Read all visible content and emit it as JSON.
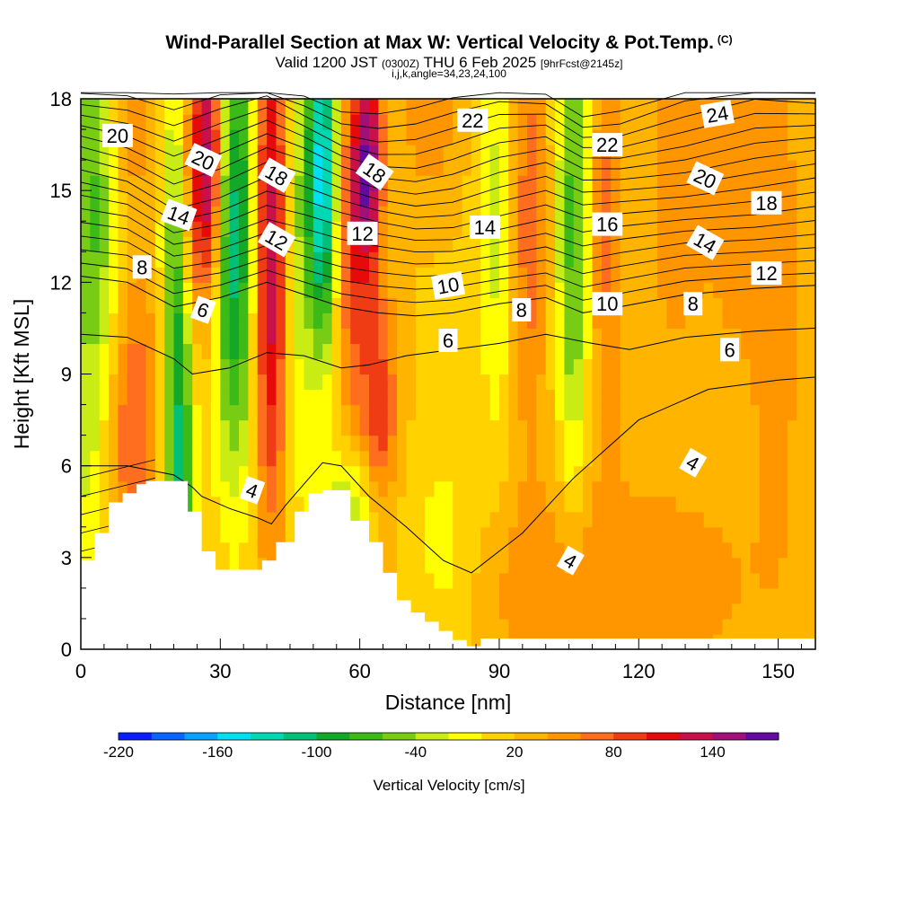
{
  "header": {
    "title": "Wind-Parallel Section at Max W: Vertical Velocity & Pot.Temp.",
    "title_suffix": "(C)",
    "valid_prefix": "Valid 1200 JST",
    "valid_zulu": "(0300Z)",
    "valid_date": "THU 6 Feb 2025",
    "forecast_tag": "[9hrFcst@2145z]",
    "indices": "i,j,k,angle=34,23,24,100"
  },
  "chart_data": {
    "type": "heatmap",
    "xlabel": "Distance [nm]",
    "ylabel": "Height [Kft MSL]",
    "xlim": [
      0,
      158
    ],
    "ylim": [
      0,
      18
    ],
    "x_ticks": [
      0,
      30,
      60,
      90,
      120,
      150
    ],
    "y_ticks": [
      0,
      3,
      6,
      9,
      12,
      15,
      18
    ],
    "colorbar": {
      "title": "Vertical Velocity [cm/s]",
      "tick_labels": [
        "-220",
        "-160",
        "-100",
        "-40",
        "20",
        "80",
        "140"
      ],
      "tick_values": [
        -220,
        -160,
        -100,
        -40,
        20,
        80,
        140
      ],
      "min": -220,
      "max": 170,
      "step": 20,
      "colors": [
        "#0a1eff",
        "#0a64ff",
        "#0aa0ff",
        "#00e0f0",
        "#00d8b4",
        "#00c078",
        "#14a828",
        "#3cba18",
        "#78cc14",
        "#c8ec14",
        "#ffff00",
        "#ffd200",
        "#ffb400",
        "#ff9600",
        "#ff6e1e",
        "#f03c14",
        "#e60a0a",
        "#c8104a",
        "#a01078",
        "#640aa0"
      ]
    },
    "terrain_profile": {
      "x": [
        0,
        3,
        3,
        6,
        6,
        9,
        9,
        12,
        12,
        14,
        14,
        23,
        23,
        26,
        26,
        29,
        29,
        39,
        39,
        42,
        42,
        46,
        46,
        49,
        49,
        52,
        52,
        58,
        58,
        62,
        62,
        65,
        65,
        68,
        68,
        71,
        71,
        74,
        74,
        77,
        77,
        80,
        80,
        83,
        83,
        86,
        86,
        158
      ],
      "y": [
        2.9,
        2.9,
        3.8,
        3.8,
        4.8,
        4.8,
        5.1,
        5.1,
        5.4,
        5.4,
        5.5,
        5.5,
        4.5,
        4.5,
        3.2,
        3.2,
        2.6,
        2.6,
        2.9,
        2.9,
        3.5,
        3.5,
        4.5,
        4.5,
        5.1,
        5.1,
        5.2,
        5.2,
        4.2,
        4.2,
        3.5,
        3.5,
        2.5,
        2.5,
        1.6,
        1.6,
        1.2,
        1.2,
        0.9,
        0.9,
        0.6,
        0.6,
        0.3,
        0.3,
        0.1,
        0.1,
        0.35,
        0.35
      ]
    },
    "w_features": [
      {
        "x": 3,
        "z": 13,
        "sx": 4,
        "sz": 10,
        "w": -90
      },
      {
        "x": 10,
        "z": 7,
        "sx": 6,
        "sz": 4,
        "w": 70
      },
      {
        "x": 21,
        "z": 8,
        "sx": 2.5,
        "sz": 8,
        "w": -140
      },
      {
        "x": 24,
        "z": 15,
        "sx": 2.5,
        "sz": 4,
        "w": 90
      },
      {
        "x": 28,
        "z": 16,
        "sx": 2,
        "sz": 3,
        "w": 120
      },
      {
        "x": 31,
        "z": 13,
        "sx": 2.5,
        "sz": 5,
        "w": -80
      },
      {
        "x": 35,
        "z": 14,
        "sx": 2.5,
        "sz": 6,
        "w": -100
      },
      {
        "x": 41,
        "z": 13,
        "sx": 3,
        "sz": 6,
        "w": 130
      },
      {
        "x": 46,
        "z": 13,
        "sx": 2.5,
        "sz": 6,
        "w": -60
      },
      {
        "x": 52,
        "z": 15.5,
        "sx": 2.5,
        "sz": 4,
        "w": -170
      },
      {
        "x": 58,
        "z": 14,
        "sx": 2.5,
        "sz": 4,
        "w": 80
      },
      {
        "x": 62,
        "z": 16,
        "sx": 2,
        "sz": 2.5,
        "w": 130
      },
      {
        "x": 64,
        "z": 7.5,
        "sx": 3,
        "sz": 3,
        "w": 80
      },
      {
        "x": 59,
        "z": 4.5,
        "sx": 5,
        "sz": 1.5,
        "w": -70
      },
      {
        "x": 78,
        "z": 3,
        "sx": 6,
        "sz": 2.5,
        "w": -40
      },
      {
        "x": 90,
        "z": 14,
        "sx": 3,
        "sz": 5,
        "w": -50
      },
      {
        "x": 96,
        "z": 14,
        "sx": 3,
        "sz": 5,
        "w": 60
      },
      {
        "x": 106,
        "z": 14,
        "sx": 2.5,
        "sz": 6,
        "w": -90
      },
      {
        "x": 113,
        "z": 14,
        "sx": 3,
        "sz": 5,
        "w": 50
      },
      {
        "x": 128,
        "z": 15,
        "sx": 4,
        "sz": 4,
        "w": 40
      },
      {
        "x": 140,
        "z": 15,
        "sx": 5,
        "sz": 5,
        "w": 30
      },
      {
        "x": 150,
        "z": 12,
        "sx": 4,
        "sz": 6,
        "w": 35
      },
      {
        "x": 10,
        "z": 17.5,
        "sx": 4,
        "sz": 2,
        "w": 45
      },
      {
        "x": 75,
        "z": 17.5,
        "sx": 5,
        "sz": 2,
        "w": 35
      },
      {
        "x": 100,
        "z": 2,
        "sx": 25,
        "sz": 2.5,
        "w": 25
      },
      {
        "x": 125,
        "z": 2,
        "sx": 20,
        "sz": 3,
        "w": 20
      }
    ],
    "theta_contour_heights": [
      {
        "level": 4,
        "x": [
          0,
          10,
          20,
          24,
          26,
          32,
          38,
          41,
          44,
          48,
          52,
          56,
          62,
          70,
          78,
          84,
          95,
          106,
          120,
          135,
          150,
          158
        ],
        "y": [
          6,
          6,
          5.7,
          5.3,
          5.0,
          4.6,
          4.3,
          4.1,
          4.7,
          5.4,
          6.1,
          6.0,
          5.0,
          4.0,
          2.9,
          2.5,
          3.8,
          5.6,
          7.5,
          8.5,
          8.8,
          8.9
        ]
      },
      {
        "level": 6,
        "x": [
          0,
          10,
          20,
          24,
          32,
          40,
          48,
          56,
          62,
          70,
          80,
          90,
          100,
          110,
          118,
          130,
          145,
          158
        ],
        "y": [
          10.3,
          10.2,
          9.5,
          9.0,
          9.2,
          9.7,
          9.6,
          9.2,
          9.3,
          9.6,
          9.8,
          10.0,
          10.3,
          10.0,
          9.8,
          10.2,
          10.4,
          10.5
        ]
      },
      {
        "level": 8,
        "x": [
          0,
          10,
          20,
          30,
          40,
          48,
          56,
          64,
          72,
          80,
          90,
          100,
          108,
          116,
          130,
          145,
          158
        ],
        "y": [
          12.2,
          12.0,
          11.2,
          11.5,
          12.0,
          11.6,
          11.2,
          11.0,
          10.9,
          11.0,
          11.3,
          11.5,
          11.0,
          11.2,
          11.6,
          11.8,
          11.9
        ]
      }
    ],
    "theta_contour_labels": [
      {
        "text": "20",
        "x": 3,
        "z": 16.8,
        "angle": 0
      },
      {
        "text": "20",
        "x": 10,
        "z": 16.0,
        "angle": 25
      },
      {
        "text": "14",
        "x": 8,
        "z": 14.2,
        "angle": 20
      },
      {
        "text": "8",
        "x": 5,
        "z": 12.5,
        "angle": 0
      },
      {
        "text": "6",
        "x": 10,
        "z": 11.1,
        "angle": 20
      },
      {
        "text": "18",
        "x": 16,
        "z": 15.5,
        "angle": 30
      },
      {
        "text": "12",
        "x": 16,
        "z": 13.4,
        "angle": 30
      },
      {
        "text": "4",
        "x": 14,
        "z": 5.2,
        "angle": 20
      },
      {
        "text": "18",
        "x": 24,
        "z": 15.6,
        "angle": 35
      },
      {
        "text": "12",
        "x": 23,
        "z": 13.6,
        "angle": 0
      },
      {
        "text": "22",
        "x": 32,
        "z": 17.3,
        "angle": 0
      },
      {
        "text": "14",
        "x": 33,
        "z": 13.8,
        "angle": 0
      },
      {
        "text": "10",
        "x": 30,
        "z": 11.9,
        "angle": -10
      },
      {
        "text": "6",
        "x": 30,
        "z": 10.1,
        "angle": 0
      },
      {
        "text": "8",
        "x": 36,
        "z": 11.1,
        "angle": 0
      },
      {
        "text": "22",
        "x": 43,
        "z": 16.5,
        "angle": 0
      },
      {
        "text": "16",
        "x": 43,
        "z": 13.9,
        "angle": 0
      },
      {
        "text": "10",
        "x": 43,
        "z": 11.3,
        "angle": 0
      },
      {
        "text": "24",
        "x": 52,
        "z": 17.5,
        "angle": -10
      },
      {
        "text": "20",
        "x": 51,
        "z": 15.4,
        "angle": 25
      },
      {
        "text": "14",
        "x": 51,
        "z": 13.3,
        "angle": 30
      },
      {
        "text": "8",
        "x": 50,
        "z": 11.3,
        "angle": 0
      },
      {
        "text": "18",
        "x": 56,
        "z": 14.6,
        "angle": 0
      },
      {
        "text": "12",
        "x": 56,
        "z": 12.3,
        "angle": 0
      },
      {
        "text": "6",
        "x": 53,
        "z": 9.8,
        "angle": 0
      },
      {
        "text": "4",
        "x": 50,
        "z": 6.1,
        "angle": 30
      },
      {
        "text": "4",
        "x": 40,
        "z": 2.9,
        "angle": 30
      }
    ]
  }
}
